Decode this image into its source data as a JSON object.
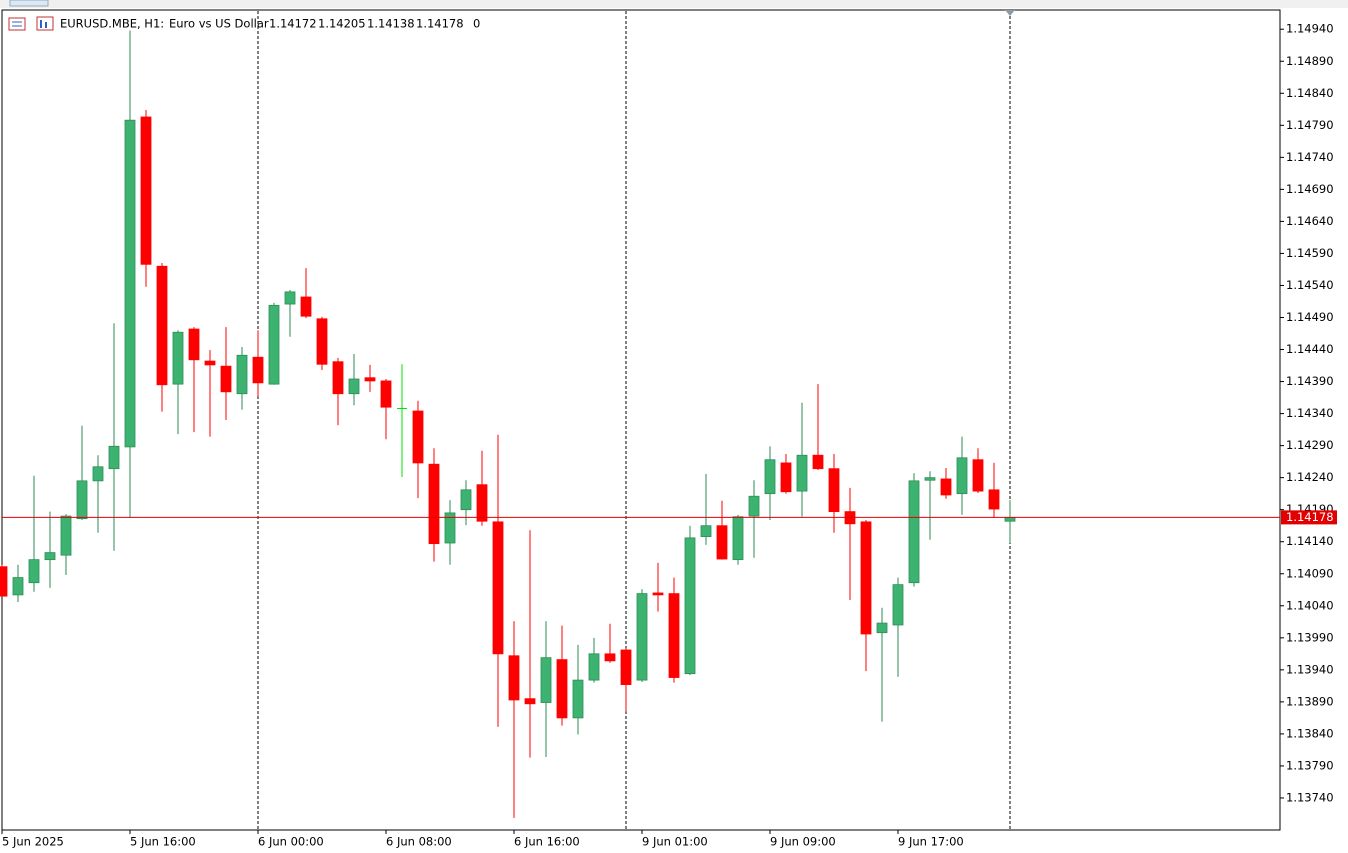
{
  "chart_data": {
    "type": "candlestick",
    "header": {
      "symbol": "EURUSD.MBE, H1:",
      "description": "Euro vs US Dollar",
      "ohlc": [
        1.14172,
        1.14205,
        1.14138,
        1.14178
      ],
      "tick_volume": 0
    },
    "categories": [
      "5 Jun 2025",
      null,
      null,
      null,
      null,
      null,
      null,
      null,
      "5 Jun 16:00",
      null,
      null,
      null,
      null,
      null,
      null,
      null,
      "6 Jun 00:00",
      null,
      null,
      null,
      null,
      null,
      null,
      null,
      "6 Jun 08:00",
      null,
      null,
      null,
      null,
      null,
      null,
      null,
      "6 Jun 16:00",
      null,
      null,
      null,
      null,
      null,
      null,
      null,
      "9 Jun 01:00",
      null,
      null,
      null,
      null,
      null,
      null,
      null,
      "9 Jun 09:00",
      null,
      null,
      null,
      null,
      null,
      null,
      null,
      "9 Jun 17:00",
      null,
      null,
      null,
      null,
      null,
      null,
      null
    ],
    "open": [
      1.14101,
      1.14057,
      1.14076,
      1.14112,
      1.14119,
      1.14176,
      1.14235,
      1.14254,
      1.14288,
      1.14803,
      1.1457,
      1.14386,
      1.14472,
      1.14422,
      1.14414,
      1.14371,
      1.14428,
      1.14386,
      1.14511,
      1.14522,
      1.14488,
      1.14421,
      1.14371,
      1.14396,
      1.14391,
      1.14348,
      1.14344,
      1.14261,
      1.14138,
      1.1419,
      1.14229,
      1.14171,
      1.13962,
      1.13895,
      1.13889,
      1.13956,
      1.13865,
      1.13924,
      1.13965,
      1.13971,
      1.13924,
      1.1406,
      1.14059,
      1.13934,
      1.14148,
      1.14165,
      1.14112,
      1.1418,
      1.14215,
      1.14263,
      1.14219,
      1.14275,
      1.14254,
      1.14187,
      1.14171,
      1.13998,
      1.1401,
      1.14076,
      1.14236,
      1.14238,
      1.14215,
      1.14268,
      1.14221,
      1.14172
    ],
    "high": [
      1.14104,
      1.14104,
      1.14243,
      1.14187,
      1.14183,
      1.14321,
      1.14275,
      1.14481,
      1.14938,
      1.14814,
      1.14575,
      1.1447,
      1.14475,
      1.14439,
      1.14475,
      1.14444,
      1.1447,
      1.14513,
      1.14533,
      1.14567,
      1.14491,
      1.14427,
      1.14433,
      1.14416,
      1.14394,
      1.14417,
      1.1436,
      1.14286,
      1.14205,
      1.14236,
      1.14282,
      1.14307,
      1.14016,
      1.14158,
      1.14016,
      1.14009,
      1.13979,
      1.1399,
      1.14012,
      1.13974,
      1.14066,
      1.14107,
      1.14084,
      1.14165,
      1.14246,
      1.14204,
      1.14182,
      1.14236,
      1.14289,
      1.14277,
      1.14357,
      1.14386,
      1.14277,
      1.14224,
      1.14174,
      1.14037,
      1.14084,
      1.14247,
      1.1425,
      1.14255,
      1.14304,
      1.14286,
      1.14263,
      1.14205
    ],
    "low": [
      1.14054,
      1.14046,
      1.14062,
      1.14068,
      1.14088,
      1.14174,
      1.14154,
      1.14126,
      1.14177,
      1.14538,
      1.14343,
      1.14308,
      1.14311,
      1.14304,
      1.1433,
      1.14346,
      1.14367,
      1.14385,
      1.1446,
      1.14489,
      1.14408,
      1.14322,
      1.14353,
      1.14374,
      1.143,
      1.14241,
      1.14208,
      1.14109,
      1.14104,
      1.14166,
      1.14165,
      1.13851,
      1.13709,
      1.13803,
      1.13804,
      1.13853,
      1.13839,
      1.1392,
      1.13951,
      1.13875,
      1.13921,
      1.14031,
      1.1392,
      1.13932,
      1.14135,
      1.14112,
      1.14104,
      1.14115,
      1.14174,
      1.14215,
      1.14179,
      1.14252,
      1.14154,
      1.14049,
      1.13938,
      1.13859,
      1.13929,
      1.1407,
      1.14143,
      1.14207,
      1.14182,
      1.14216,
      1.14177,
      1.14138
    ],
    "close": [
      1.14055,
      1.14084,
      1.14112,
      1.14123,
      1.1418,
      1.14235,
      1.14257,
      1.14289,
      1.14798,
      1.14573,
      1.14385,
      1.14467,
      1.14424,
      1.14416,
      1.14374,
      1.14431,
      1.14388,
      1.14509,
      1.1453,
      1.14492,
      1.14417,
      1.14371,
      1.14394,
      1.14391,
      1.1435,
      1.14348,
      1.14263,
      1.14137,
      1.14185,
      1.14221,
      1.14172,
      1.13965,
      1.13893,
      1.13887,
      1.13959,
      1.13865,
      1.13924,
      1.13965,
      1.13954,
      1.13917,
      1.14059,
      1.14057,
      1.13928,
      1.14146,
      1.14165,
      1.14113,
      1.14179,
      1.14211,
      1.14268,
      1.14218,
      1.14275,
      1.14254,
      1.14187,
      1.14168,
      1.13996,
      1.14013,
      1.14073,
      1.14235,
      1.1424,
      1.14213,
      1.14271,
      1.14219,
      1.14191,
      1.14178
    ],
    "bid_line": {
      "value": 1.14178,
      "label": "1.14178",
      "color": "#e00000"
    },
    "colors": {
      "up": "#3cb371",
      "down": "#ff0000",
      "doji": "#00e000"
    },
    "ylim": [
      1.1369,
      1.1497
    ],
    "yticks": [
      {
        "value": 1.1494,
        "label": "1.14940"
      },
      {
        "value": 1.1489,
        "label": "1.14890"
      },
      {
        "value": 1.1484,
        "label": "1.14840"
      },
      {
        "value": 1.1479,
        "label": "1.14790"
      },
      {
        "value": 1.1474,
        "label": "1.14740"
      },
      {
        "value": 1.1469,
        "label": "1.14690"
      },
      {
        "value": 1.1464,
        "label": "1.14640"
      },
      {
        "value": 1.1459,
        "label": "1.14590"
      },
      {
        "value": 1.1454,
        "label": "1.14540"
      },
      {
        "value": 1.1449,
        "label": "1.14490"
      },
      {
        "value": 1.1444,
        "label": "1.14440"
      },
      {
        "value": 1.1439,
        "label": "1.14390"
      },
      {
        "value": 1.1434,
        "label": "1.14340"
      },
      {
        "value": 1.1429,
        "label": "1.14290"
      },
      {
        "value": 1.1424,
        "label": "1.14240"
      },
      {
        "value": 1.1419,
        "label": "1.14190"
      },
      {
        "value": 1.1414,
        "label": "1.14140"
      },
      {
        "value": 1.1409,
        "label": "1.14090"
      },
      {
        "value": 1.1404,
        "label": "1.14040"
      },
      {
        "value": 1.1399,
        "label": "1.13990"
      },
      {
        "value": 1.1394,
        "label": "1.13940"
      },
      {
        "value": 1.1389,
        "label": "1.13890"
      },
      {
        "value": 1.1384,
        "label": "1.13840"
      },
      {
        "value": 1.1379,
        "label": "1.13790"
      },
      {
        "value": 1.1374,
        "label": "1.13740"
      }
    ],
    "grid": false
  }
}
